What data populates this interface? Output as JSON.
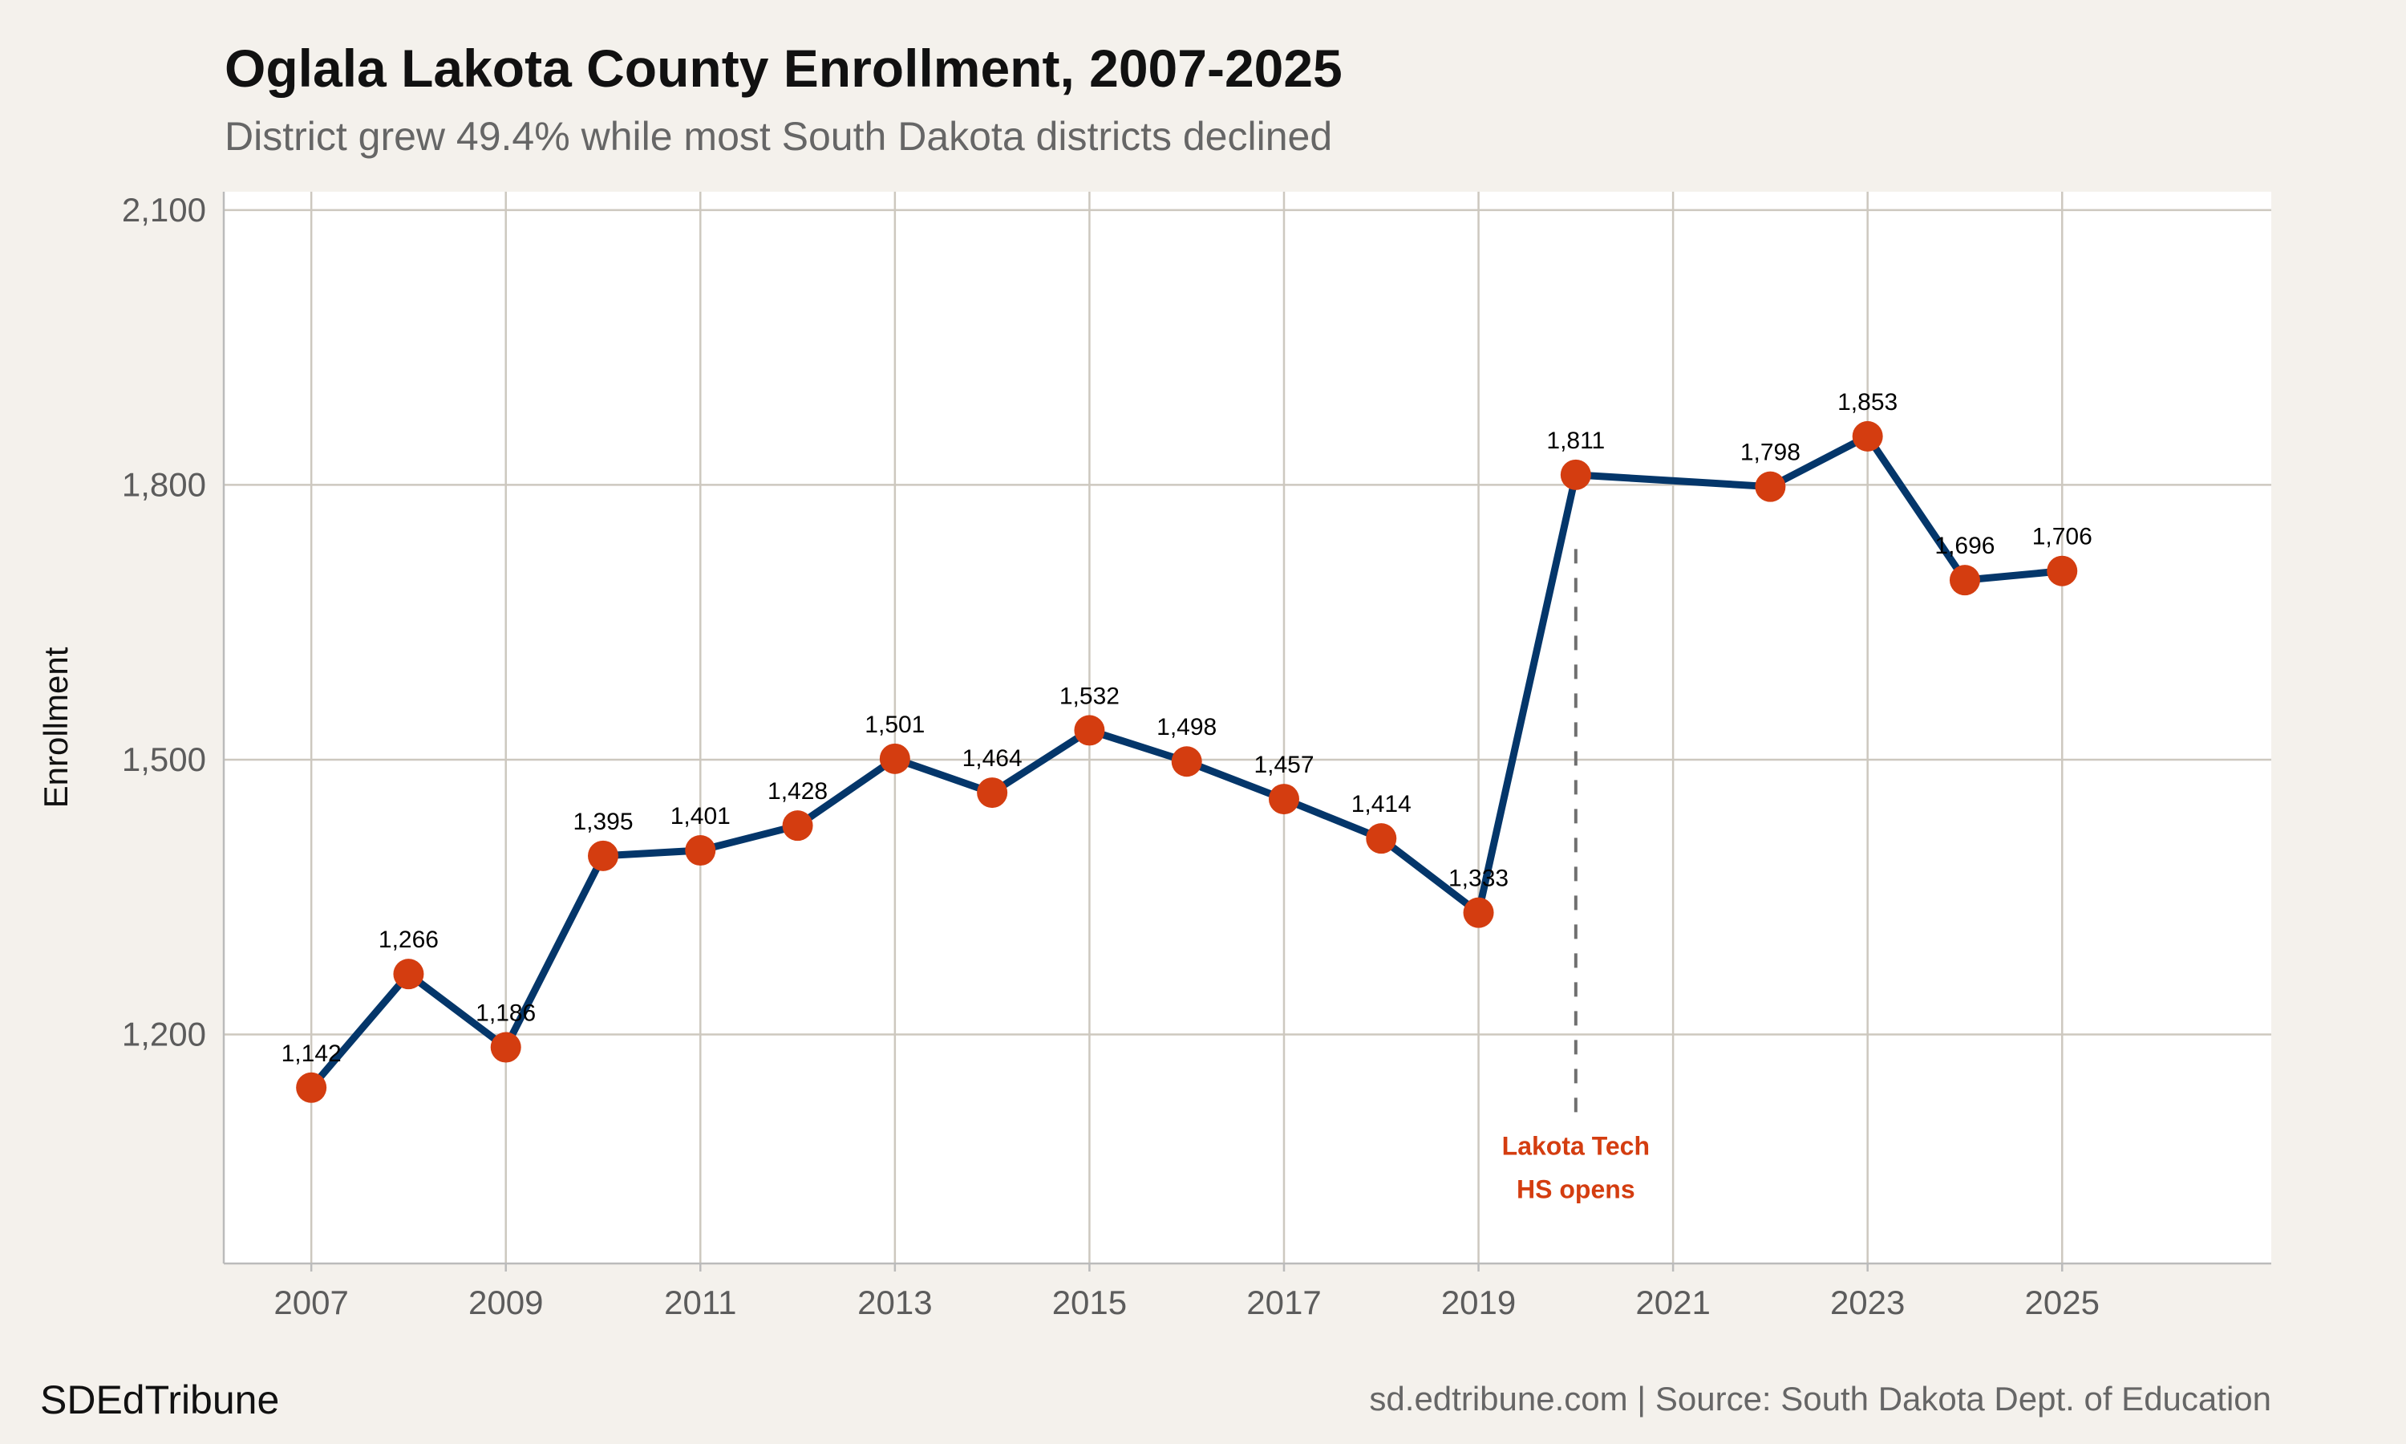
{
  "chart_data": {
    "type": "line",
    "title": "Oglala Lakota County Enrollment, 2007-2025",
    "subtitle": "District grew 49.4% while most South Dakota districts declined",
    "xlabel": "",
    "ylabel": "Enrollment",
    "x": [
      2007,
      2008,
      2009,
      2010,
      2011,
      2012,
      2013,
      2014,
      2015,
      2016,
      2017,
      2018,
      2019,
      2020,
      2022,
      2023,
      2024,
      2025
    ],
    "values": [
      1142,
      1266,
      1186,
      1395,
      1401,
      1428,
      1501,
      1464,
      1532,
      1498,
      1457,
      1414,
      1333,
      1811,
      1798,
      1853,
      1696,
      1706
    ],
    "data_labels": [
      "1,142",
      "1,266",
      "1,186",
      "1,395",
      "1,401",
      "1,428",
      "1,501",
      "1,464",
      "1,532",
      "1,498",
      "1,457",
      "1,414",
      "1,333",
      "1,811",
      "1,798",
      "1,853",
      "1,696",
      "1,706"
    ],
    "xlim": [
      2006.1,
      2027.15
    ],
    "ylim": [
      950,
      2120
    ],
    "x_ticks": [
      2007,
      2009,
      2011,
      2013,
      2015,
      2017,
      2019,
      2021,
      2023,
      2025
    ],
    "y_ticks": [
      1200,
      1500,
      1800,
      2100
    ],
    "y_tick_labels": [
      "1,200",
      "1,500",
      "1,800",
      "2,100"
    ],
    "grid": true,
    "legend": "none",
    "annotation": {
      "x": 2020,
      "line_from": 1730,
      "line_to": 1100,
      "lines": [
        "Lakota Tech",
        "HS opens"
      ]
    },
    "colors": {
      "line": "#04366a",
      "points": "#d43d10",
      "annotation": "#d43d10",
      "annotation_line": "#707070",
      "background": "#f4f1ec",
      "panel": "#ffffff",
      "grid": "#cdc8bf"
    }
  },
  "footer": {
    "brand": "SDEdTribune",
    "source": "sd.edtribune.com | Source: South Dakota Dept. of Education"
  }
}
